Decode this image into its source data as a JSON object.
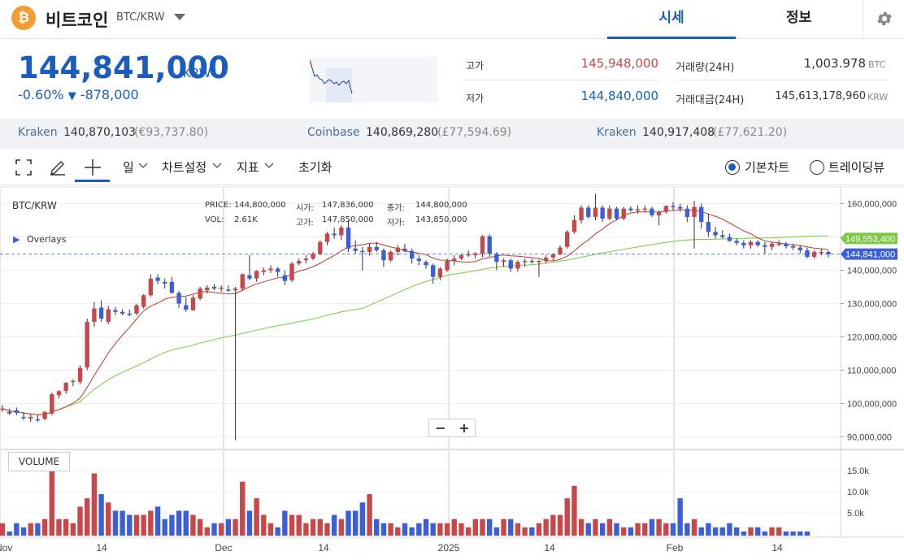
{
  "header": {
    "coin_icon": "bitcoin-icon",
    "coin_name": "비트코인",
    "pair": "BTC/KRW",
    "tabs": [
      "시세",
      "정보"
    ],
    "settings_icon": "gear-icon"
  },
  "price": {
    "current": "144,841,000",
    "unit": "KRW",
    "change_pct": "-0.60%",
    "change_arrow": "▼",
    "change_amt": "-878,000"
  },
  "stats": {
    "high_label": "고가",
    "high_value": "145,948,000",
    "low_label": "저가",
    "low_value": "144,840,000",
    "volume_label": "거래량(24H)",
    "volume_value": "1,003.978",
    "volume_unit": "BTC",
    "amount_label": "거래대금(24H)",
    "amount_value": "145,613,178,960",
    "amount_unit": "KRW"
  },
  "exchanges": [
    {
      "name": "Kraken",
      "price": "140,870,103",
      "foreign": "(€93,737.80)"
    },
    {
      "name": "Coinbase",
      "price": "140,869,280",
      "foreign": "(£77,594.69)"
    },
    {
      "name": "Kraken",
      "price": "140,917,408",
      "foreign": "(£77,621.20)"
    }
  ],
  "toolbar": {
    "fullscreen_icon": "fullscreen-icon",
    "draw_icon": "pencil-icon",
    "crosshair_icon": "crosshair-icon",
    "interval": "일",
    "chart_settings": "차트설정",
    "indicators": "지표",
    "reset": "초기화",
    "mode_basic": "기본차트",
    "mode_trading": "트레이딩뷰"
  },
  "legend": {
    "symbol": "BTC/KRW",
    "overlays": "Overlays",
    "price_label": "PRICE:",
    "price": "144,800,000",
    "vol_label": "VOL:",
    "vol": "2.61K",
    "open_label": "시가:",
    "open": "147,836,000",
    "high_label": "고가:",
    "high": "147,850,000",
    "close_label": "종가:",
    "close": "144,800,000",
    "low_label": "저가:",
    "low": "143,850,000"
  },
  "volume_label": "VOLUME",
  "colors": {
    "up": "#c8484a",
    "down": "#3a5fd9",
    "ma_short": "#c0392b",
    "ma_long": "#7ac943",
    "accent": "#1a5dbf"
  },
  "chart_data": {
    "type": "candlestick",
    "y_axis_ticks": [
      "160,000,000",
      "150,000,000",
      "140,000,000",
      "130,000,000",
      "120,000,000",
      "110,000,000",
      "100,000,000",
      "90,000,000"
    ],
    "ylim": [
      85000000,
      163000000
    ],
    "volume_ticks": [
      "15.0k",
      "10.0k",
      "5.0k"
    ],
    "x_axis_ticks": [
      "Nov",
      "14",
      "Dec",
      "14",
      "2025",
      "14",
      "Feb",
      "14"
    ],
    "price_tags": [
      {
        "label": "149,553,400",
        "value": 149553400
      },
      {
        "label": "144,841,000",
        "value": 144841000
      }
    ],
    "candles": [
      [
        98.5,
        99.5,
        97.5,
        98.5
      ],
      [
        97.5,
        98.5,
        96.6,
        97.0
      ],
      [
        98.0,
        98.8,
        96.5,
        97.2
      ],
      [
        96.0,
        97.5,
        95.0,
        95.8
      ],
      [
        95.5,
        96.8,
        94.5,
        96.0
      ],
      [
        95.3,
        96.5,
        94.5,
        95.2
      ],
      [
        95.4,
        97.7,
        95.0,
        97.5
      ],
      [
        97.0,
        103.2,
        96.5,
        102.8
      ],
      [
        102.5,
        104.0,
        101.5,
        103.7
      ],
      [
        103.8,
        106.5,
        103.0,
        106.2
      ],
      [
        106.5,
        107.3,
        105.2,
        106.8
      ],
      [
        106.5,
        111.5,
        105.8,
        110.7
      ],
      [
        110.8,
        125.5,
        110.0,
        124.5
      ],
      [
        124.5,
        130.5,
        123.0,
        128.5
      ],
      [
        128.8,
        131.0,
        124.5,
        125.5
      ],
      [
        124.5,
        129.3,
        123.8,
        128.3
      ],
      [
        128.0,
        129.0,
        126.5,
        127.5
      ],
      [
        127.5,
        128.3,
        126.5,
        127.0
      ],
      [
        127.0,
        128.2,
        126.2,
        126.8
      ],
      [
        127.0,
        130.0,
        126.5,
        129.5
      ],
      [
        129.0,
        132.8,
        128.5,
        132.5
      ],
      [
        132.5,
        138.8,
        132.0,
        137.5
      ],
      [
        137.8,
        138.8,
        135.8,
        136.8
      ],
      [
        136.5,
        137.5,
        134.5,
        136.0
      ],
      [
        136.5,
        138.0,
        133.0,
        133.2
      ],
      [
        133.2,
        133.8,
        128.7,
        130.0
      ],
      [
        129.5,
        132.0,
        127.5,
        128.2
      ],
      [
        128.0,
        132.5,
        127.8,
        131.8
      ],
      [
        131.5,
        135.0,
        131.0,
        134.5
      ],
      [
        134.0,
        135.5,
        133.0,
        134.8
      ],
      [
        135.0,
        135.8,
        134.0,
        134.5
      ],
      [
        134.5,
        135.5,
        133.5,
        134.8
      ],
      [
        134.2,
        135.5,
        133.5,
        134.0
      ],
      [
        134.0,
        135.0,
        89.0,
        134.5
      ],
      [
        134.5,
        139.0,
        133.8,
        138.8
      ],
      [
        138.5,
        144.5,
        137.0,
        137.5
      ],
      [
        137.5,
        140.0,
        136.5,
        139.8
      ],
      [
        139.5,
        140.8,
        138.5,
        140.0
      ],
      [
        140.0,
        141.5,
        139.2,
        140.5
      ],
      [
        140.5,
        141.0,
        138.0,
        139.5
      ],
      [
        138.5,
        140.0,
        135.5,
        136.8
      ],
      [
        137.0,
        142.5,
        136.5,
        142.0
      ],
      [
        142.0,
        143.5,
        141.5,
        142.8
      ],
      [
        143.0,
        144.5,
        142.0,
        143.5
      ],
      [
        143.5,
        145.5,
        143.0,
        145.0
      ],
      [
        145.0,
        149.0,
        144.5,
        148.5
      ],
      [
        148.5,
        151.5,
        147.5,
        151.0
      ],
      [
        151.0,
        152.8,
        149.5,
        150.5
      ],
      [
        150.5,
        153.5,
        149.0,
        152.8
      ],
      [
        152.8,
        155.0,
        145.5,
        146.5
      ],
      [
        146.5,
        149.0,
        145.0,
        145.8
      ],
      [
        145.8,
        147.0,
        140.0,
        145.5
      ],
      [
        145.5,
        148.0,
        144.5,
        147.0
      ],
      [
        147.0,
        148.5,
        145.5,
        146.0
      ],
      [
        146.0,
        146.5,
        141.0,
        143.0
      ],
      [
        143.0,
        146.0,
        142.5,
        145.5
      ],
      [
        145.5,
        147.5,
        144.5,
        146.8
      ],
      [
        146.5,
        148.0,
        145.5,
        145.8
      ],
      [
        145.8,
        146.5,
        142.0,
        143.5
      ],
      [
        143.5,
        144.5,
        141.5,
        142.8
      ],
      [
        142.5,
        143.0,
        140.5,
        141.5
      ],
      [
        141.5,
        142.0,
        136.0,
        138.0
      ],
      [
        138.0,
        141.0,
        137.0,
        140.5
      ],
      [
        140.0,
        143.5,
        139.5,
        142.8
      ],
      [
        142.8,
        144.5,
        141.5,
        143.5
      ],
      [
        143.5,
        145.0,
        143.0,
        144.5
      ],
      [
        144.5,
        146.0,
        144.0,
        144.8
      ],
      [
        144.5,
        145.5,
        143.5,
        145.0
      ],
      [
        145.0,
        150.5,
        144.0,
        150.2
      ],
      [
        150.2,
        150.8,
        144.0,
        145.0
      ],
      [
        145.0,
        145.5,
        140.0,
        142.5
      ],
      [
        142.5,
        143.5,
        141.0,
        143.0
      ],
      [
        143.0,
        143.5,
        139.5,
        140.5
      ],
      [
        140.5,
        143.0,
        139.5,
        142.5
      ],
      [
        142.5,
        143.5,
        141.0,
        142.8
      ],
      [
        142.8,
        143.5,
        142.0,
        142.5
      ],
      [
        142.5,
        143.2,
        138.0,
        142.8
      ],
      [
        142.8,
        144.5,
        142.0,
        143.8
      ],
      [
        143.8,
        145.0,
        143.0,
        144.8
      ],
      [
        144.8,
        147.5,
        144.5,
        146.8
      ],
      [
        147.0,
        152.0,
        146.5,
        151.5
      ],
      [
        151.5,
        156.5,
        151.0,
        155.0
      ],
      [
        155.0,
        159.5,
        154.0,
        158.8
      ],
      [
        158.8,
        159.5,
        155.5,
        156.0
      ],
      [
        156.0,
        163.0,
        155.0,
        158.8
      ],
      [
        158.8,
        159.5,
        154.5,
        155.5
      ],
      [
        155.5,
        159.5,
        155.0,
        158.5
      ],
      [
        158.5,
        159.0,
        155.0,
        155.5
      ],
      [
        155.5,
        159.0,
        155.0,
        158.5
      ],
      [
        158.5,
        159.2,
        157.5,
        158.0
      ],
      [
        158.0,
        159.5,
        157.0,
        158.3
      ],
      [
        158.3,
        159.5,
        157.5,
        158.5
      ],
      [
        158.5,
        159.0,
        156.0,
        156.5
      ],
      [
        156.5,
        158.0,
        153.5,
        157.5
      ],
      [
        157.5,
        159.5,
        157.0,
        159.3
      ],
      [
        159.3,
        160.5,
        158.0,
        159.0
      ],
      [
        159.0,
        160.0,
        157.5,
        158.5
      ],
      [
        158.5,
        159.5,
        154.5,
        156.0
      ],
      [
        156.0,
        160.8,
        146.5,
        159.0
      ],
      [
        159.0,
        160.0,
        152.5,
        154.5
      ],
      [
        154.5,
        157.0,
        150.0,
        151.5
      ],
      [
        151.5,
        153.0,
        149.5,
        150.5
      ],
      [
        150.5,
        152.0,
        149.5,
        150.0
      ],
      [
        150.0,
        151.0,
        148.5,
        148.8
      ],
      [
        148.8,
        149.5,
        147.5,
        148.2
      ],
      [
        148.2,
        149.0,
        146.5,
        147.5
      ],
      [
        147.5,
        149.0,
        146.5,
        148.5
      ],
      [
        148.5,
        149.0,
        147.0,
        147.5
      ],
      [
        147.5,
        148.5,
        145.0,
        147.0
      ],
      [
        147.0,
        148.5,
        146.0,
        148.0
      ],
      [
        148.0,
        149.0,
        147.2,
        148.0
      ],
      [
        148.0,
        148.5,
        146.5,
        147.2
      ],
      [
        147.2,
        148.0,
        146.0,
        146.8
      ],
      [
        146.8,
        147.5,
        145.0,
        146.0
      ],
      [
        146.0,
        146.8,
        143.5,
        144.0
      ],
      [
        144.0,
        146.0,
        143.5,
        145.5
      ],
      [
        145.5,
        146.5,
        144.5,
        145.5
      ],
      [
        145.5,
        145.9,
        143.8,
        144.8
      ]
    ],
    "volume": [
      3,
      1,
      3,
      2,
      3,
      3,
      4,
      16,
      4,
      4,
      3,
      7,
      9,
      15,
      10,
      8,
      6,
      6,
      5,
      5,
      5,
      6,
      7,
      4,
      5,
      6,
      6,
      5,
      4,
      2,
      3,
      3,
      4,
      4,
      13,
      6,
      9,
      5,
      3,
      2,
      6,
      5,
      5,
      3,
      4,
      4,
      3,
      5,
      4,
      6,
      6,
      8,
      10,
      4,
      3,
      3,
      2,
      3,
      2,
      3,
      4,
      3,
      3,
      3,
      4,
      3,
      2,
      4,
      4,
      4,
      2,
      4,
      4,
      3,
      2,
      2,
      3,
      4,
      5,
      5,
      9,
      12,
      4,
      3,
      4,
      3,
      4,
      3,
      2,
      2,
      3,
      3,
      4,
      4,
      3,
      3,
      9,
      3,
      4,
      2,
      3,
      2,
      2,
      3,
      2,
      1,
      2,
      2,
      1,
      2,
      2,
      1,
      1,
      1,
      1
    ]
  }
}
